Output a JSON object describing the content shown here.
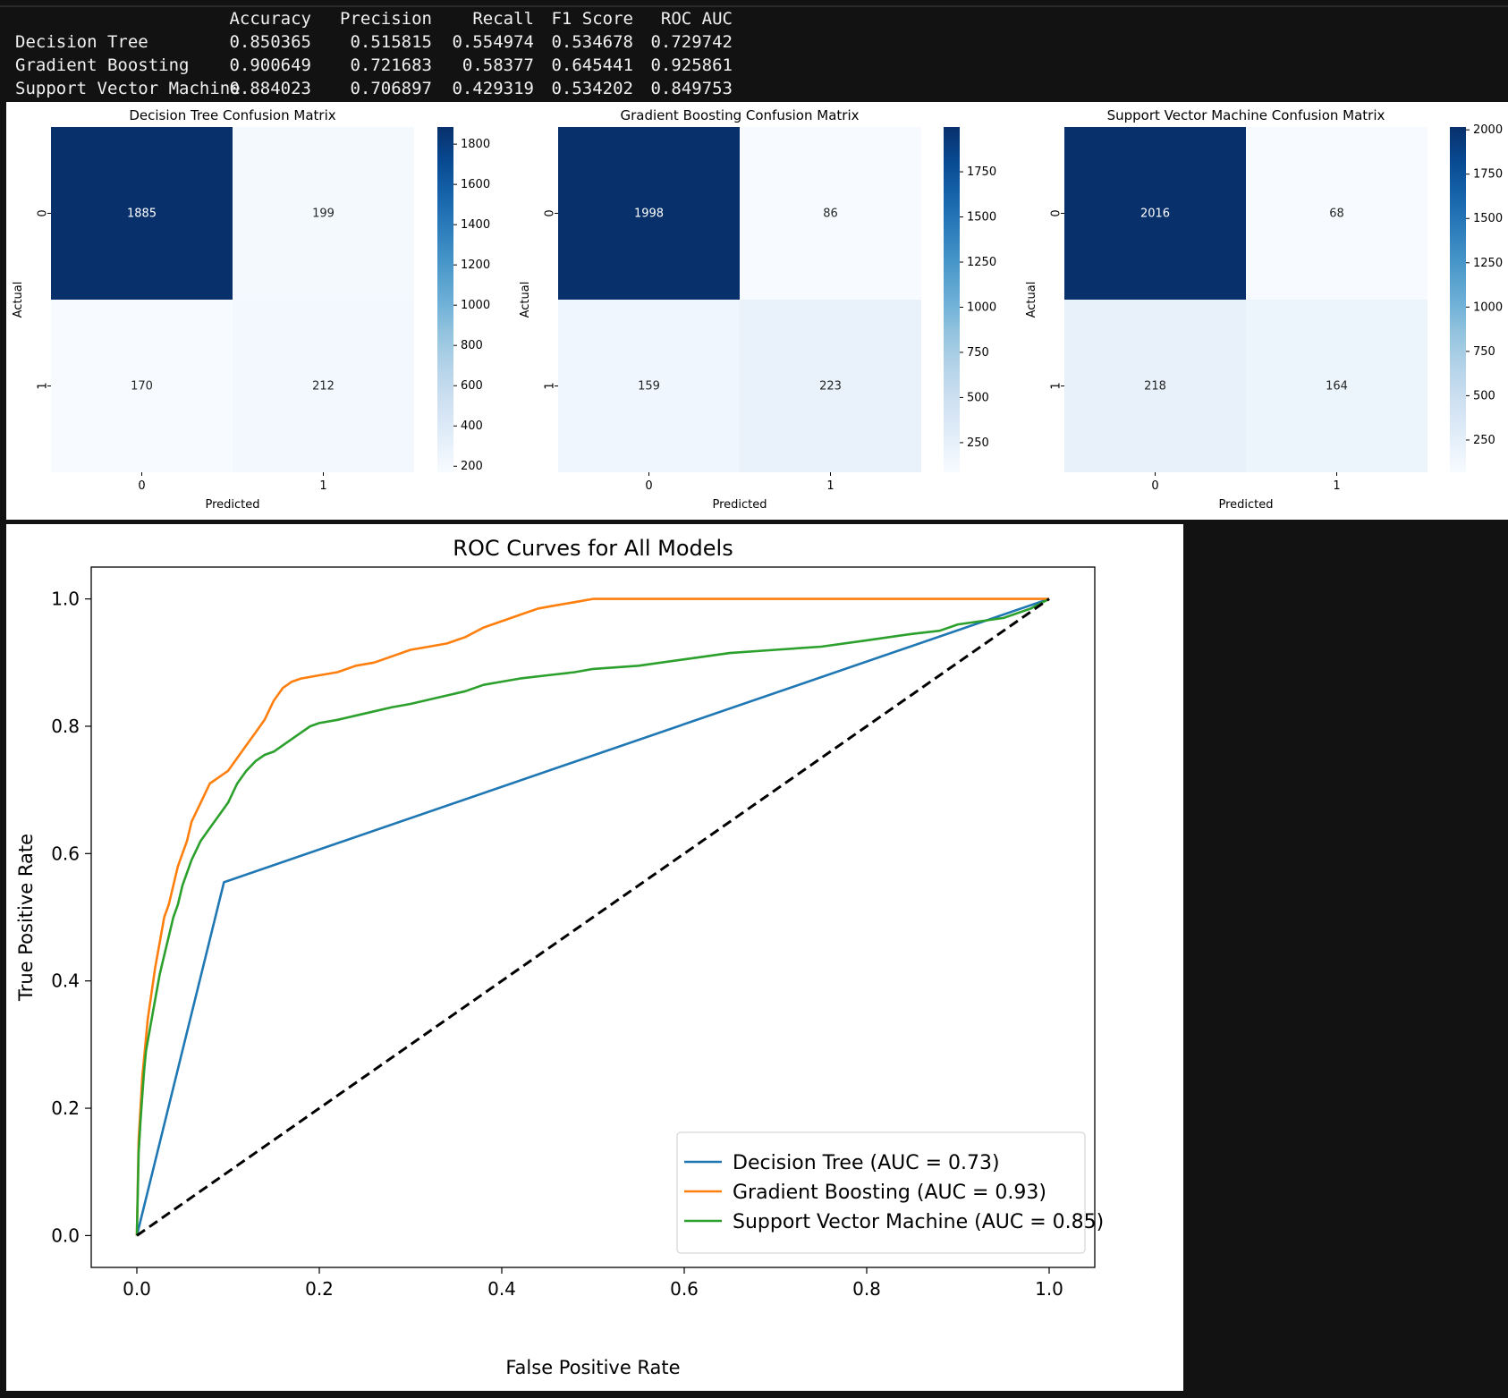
{
  "metrics_table": {
    "columns": [
      "Accuracy",
      "Precision",
      "Recall",
      "F1 Score",
      "ROC AUC"
    ],
    "rows": [
      {
        "name": "Decision Tree",
        "values": [
          "0.850365",
          "0.515815",
          "0.554974",
          "0.534678",
          "0.729742"
        ]
      },
      {
        "name": "Gradient Boosting",
        "values": [
          "0.900649",
          "0.721683",
          "0.58377",
          "0.645441",
          "0.925861"
        ]
      },
      {
        "name": "Support Vector Machine",
        "values": [
          "0.884023",
          "0.706897",
          "0.429319",
          "0.534202",
          "0.849753"
        ]
      }
    ]
  },
  "chart_data": [
    {
      "type": "heatmap",
      "title": "Decision Tree Confusion Matrix",
      "xlabel": "Predicted",
      "ylabel": "Actual",
      "x_ticks": [
        "0",
        "1"
      ],
      "y_ticks": [
        "0",
        "1"
      ],
      "matrix": [
        [
          1885,
          199
        ],
        [
          170,
          212
        ]
      ],
      "colormap": "Blues",
      "vmin": 170,
      "vmax": 1885,
      "colorbar_ticks": [
        200,
        400,
        600,
        800,
        1000,
        1200,
        1400,
        1600,
        1800
      ]
    },
    {
      "type": "heatmap",
      "title": "Gradient Boosting Confusion Matrix",
      "xlabel": "Predicted",
      "ylabel": "Actual",
      "x_ticks": [
        "0",
        "1"
      ],
      "y_ticks": [
        "0",
        "1"
      ],
      "matrix": [
        [
          1998,
          86
        ],
        [
          159,
          223
        ]
      ],
      "colormap": "Blues",
      "vmin": 86,
      "vmax": 1998,
      "colorbar_ticks": [
        250,
        500,
        750,
        1000,
        1250,
        1500,
        1750
      ]
    },
    {
      "type": "heatmap",
      "title": "Support Vector Machine Confusion Matrix",
      "xlabel": "Predicted",
      "ylabel": "Actual",
      "x_ticks": [
        "0",
        "1"
      ],
      "y_ticks": [
        "0",
        "1"
      ],
      "matrix": [
        [
          2016,
          68
        ],
        [
          218,
          164
        ]
      ],
      "colormap": "Blues",
      "vmin": 68,
      "vmax": 2016,
      "colorbar_ticks": [
        250,
        500,
        750,
        1000,
        1250,
        1500,
        1750,
        2000
      ]
    },
    {
      "type": "line",
      "title": "ROC Curves for All Models",
      "xlabel": "False Positive Rate",
      "ylabel": "True Positive Rate",
      "xlim": [
        -0.05,
        1.05
      ],
      "ylim": [
        -0.05,
        1.05
      ],
      "x_ticks": [
        0.0,
        0.2,
        0.4,
        0.6,
        0.8,
        1.0
      ],
      "y_ticks": [
        0.0,
        0.2,
        0.4,
        0.6,
        0.8,
        1.0
      ],
      "grid": false,
      "legend_position": "lower-right",
      "series": [
        {
          "name": "Decision Tree (AUC = 0.73)",
          "color": "#1f77b4",
          "x": [
            0.0,
            0.0955,
            1.0
          ],
          "y": [
            0.0,
            0.555,
            1.0
          ]
        },
        {
          "name": "Gradient Boosting (AUC = 0.93)",
          "color": "#ff7f0e",
          "x": [
            0.0,
            0.002,
            0.004,
            0.006,
            0.008,
            0.012,
            0.016,
            0.02,
            0.025,
            0.03,
            0.035,
            0.04,
            0.045,
            0.05,
            0.055,
            0.06,
            0.07,
            0.08,
            0.09,
            0.1,
            0.11,
            0.12,
            0.13,
            0.14,
            0.15,
            0.16,
            0.17,
            0.18,
            0.2,
            0.22,
            0.24,
            0.26,
            0.28,
            0.3,
            0.32,
            0.34,
            0.36,
            0.38,
            0.4,
            0.42,
            0.44,
            0.46,
            0.48,
            0.5,
            0.6,
            0.7,
            0.8,
            0.9,
            1.0
          ],
          "y": [
            0.0,
            0.15,
            0.2,
            0.25,
            0.28,
            0.34,
            0.38,
            0.42,
            0.46,
            0.5,
            0.52,
            0.55,
            0.58,
            0.6,
            0.62,
            0.65,
            0.68,
            0.71,
            0.72,
            0.73,
            0.75,
            0.77,
            0.79,
            0.81,
            0.84,
            0.86,
            0.87,
            0.875,
            0.88,
            0.885,
            0.895,
            0.9,
            0.91,
            0.92,
            0.925,
            0.93,
            0.94,
            0.955,
            0.965,
            0.975,
            0.985,
            0.99,
            0.995,
            1.0,
            1.0,
            1.0,
            1.0,
            1.0,
            1.0
          ]
        },
        {
          "name": "Support Vector Machine (AUC = 0.85)",
          "color": "#2ca02c",
          "x": [
            0.0,
            0.002,
            0.004,
            0.006,
            0.008,
            0.01,
            0.015,
            0.02,
            0.025,
            0.03,
            0.035,
            0.04,
            0.045,
            0.05,
            0.06,
            0.07,
            0.08,
            0.09,
            0.1,
            0.11,
            0.12,
            0.13,
            0.14,
            0.15,
            0.16,
            0.17,
            0.18,
            0.19,
            0.2,
            0.22,
            0.25,
            0.28,
            0.3,
            0.33,
            0.36,
            0.38,
            0.4,
            0.42,
            0.45,
            0.48,
            0.5,
            0.55,
            0.6,
            0.65,
            0.7,
            0.75,
            0.8,
            0.85,
            0.88,
            0.9,
            0.95,
            0.98,
            1.0
          ],
          "y": [
            0.0,
            0.13,
            0.18,
            0.22,
            0.26,
            0.29,
            0.33,
            0.37,
            0.41,
            0.44,
            0.47,
            0.5,
            0.52,
            0.55,
            0.59,
            0.62,
            0.64,
            0.66,
            0.68,
            0.71,
            0.73,
            0.745,
            0.755,
            0.76,
            0.77,
            0.78,
            0.79,
            0.8,
            0.805,
            0.81,
            0.82,
            0.83,
            0.835,
            0.845,
            0.855,
            0.865,
            0.87,
            0.875,
            0.88,
            0.885,
            0.89,
            0.895,
            0.905,
            0.915,
            0.92,
            0.925,
            0.935,
            0.945,
            0.95,
            0.96,
            0.97,
            0.985,
            1.0
          ]
        },
        {
          "name": "",
          "color": "#000000",
          "dashed": true,
          "x": [
            0.0,
            1.0
          ],
          "y": [
            0.0,
            1.0
          ]
        }
      ]
    }
  ]
}
